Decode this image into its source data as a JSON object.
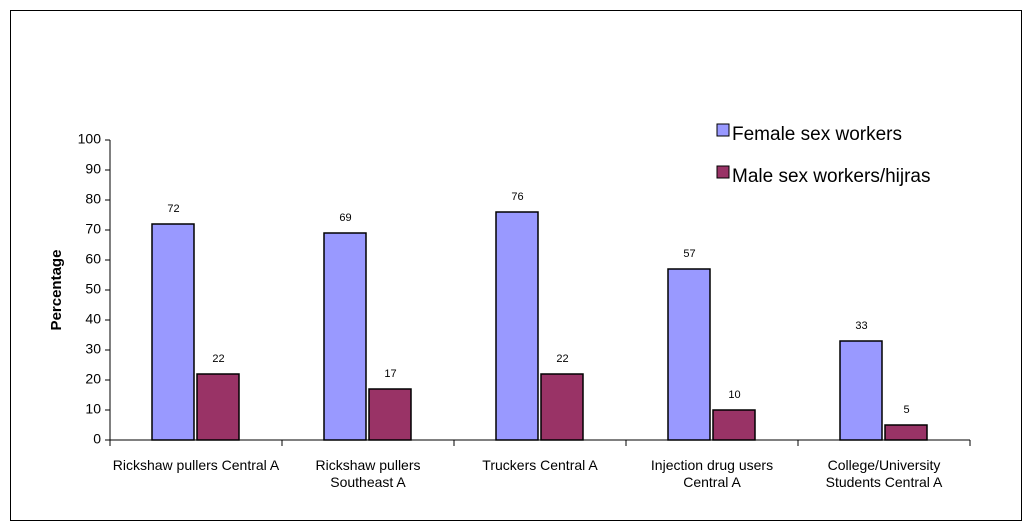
{
  "chart_data": {
    "type": "bar",
    "y_label": "Percentage",
    "categories": [
      "Rickshaw pullers Central A",
      "Rickshaw pullers Southeast A",
      "Truckers Central A",
      "Injection drug users Central A",
      "College/University Students Central A"
    ],
    "series": [
      {
        "name": "Female sex workers",
        "color": "#9999ff",
        "values": [
          72,
          69,
          76,
          57,
          33
        ]
      },
      {
        "name": "Male sex workers/hijras",
        "color": "#993366",
        "values": [
          22,
          17,
          22,
          10,
          5
        ]
      }
    ],
    "ylim": [
      0,
      100
    ],
    "yticks": [
      0,
      10,
      20,
      30,
      40,
      50,
      60,
      70,
      80,
      90,
      100
    ],
    "legend": "top-right"
  }
}
